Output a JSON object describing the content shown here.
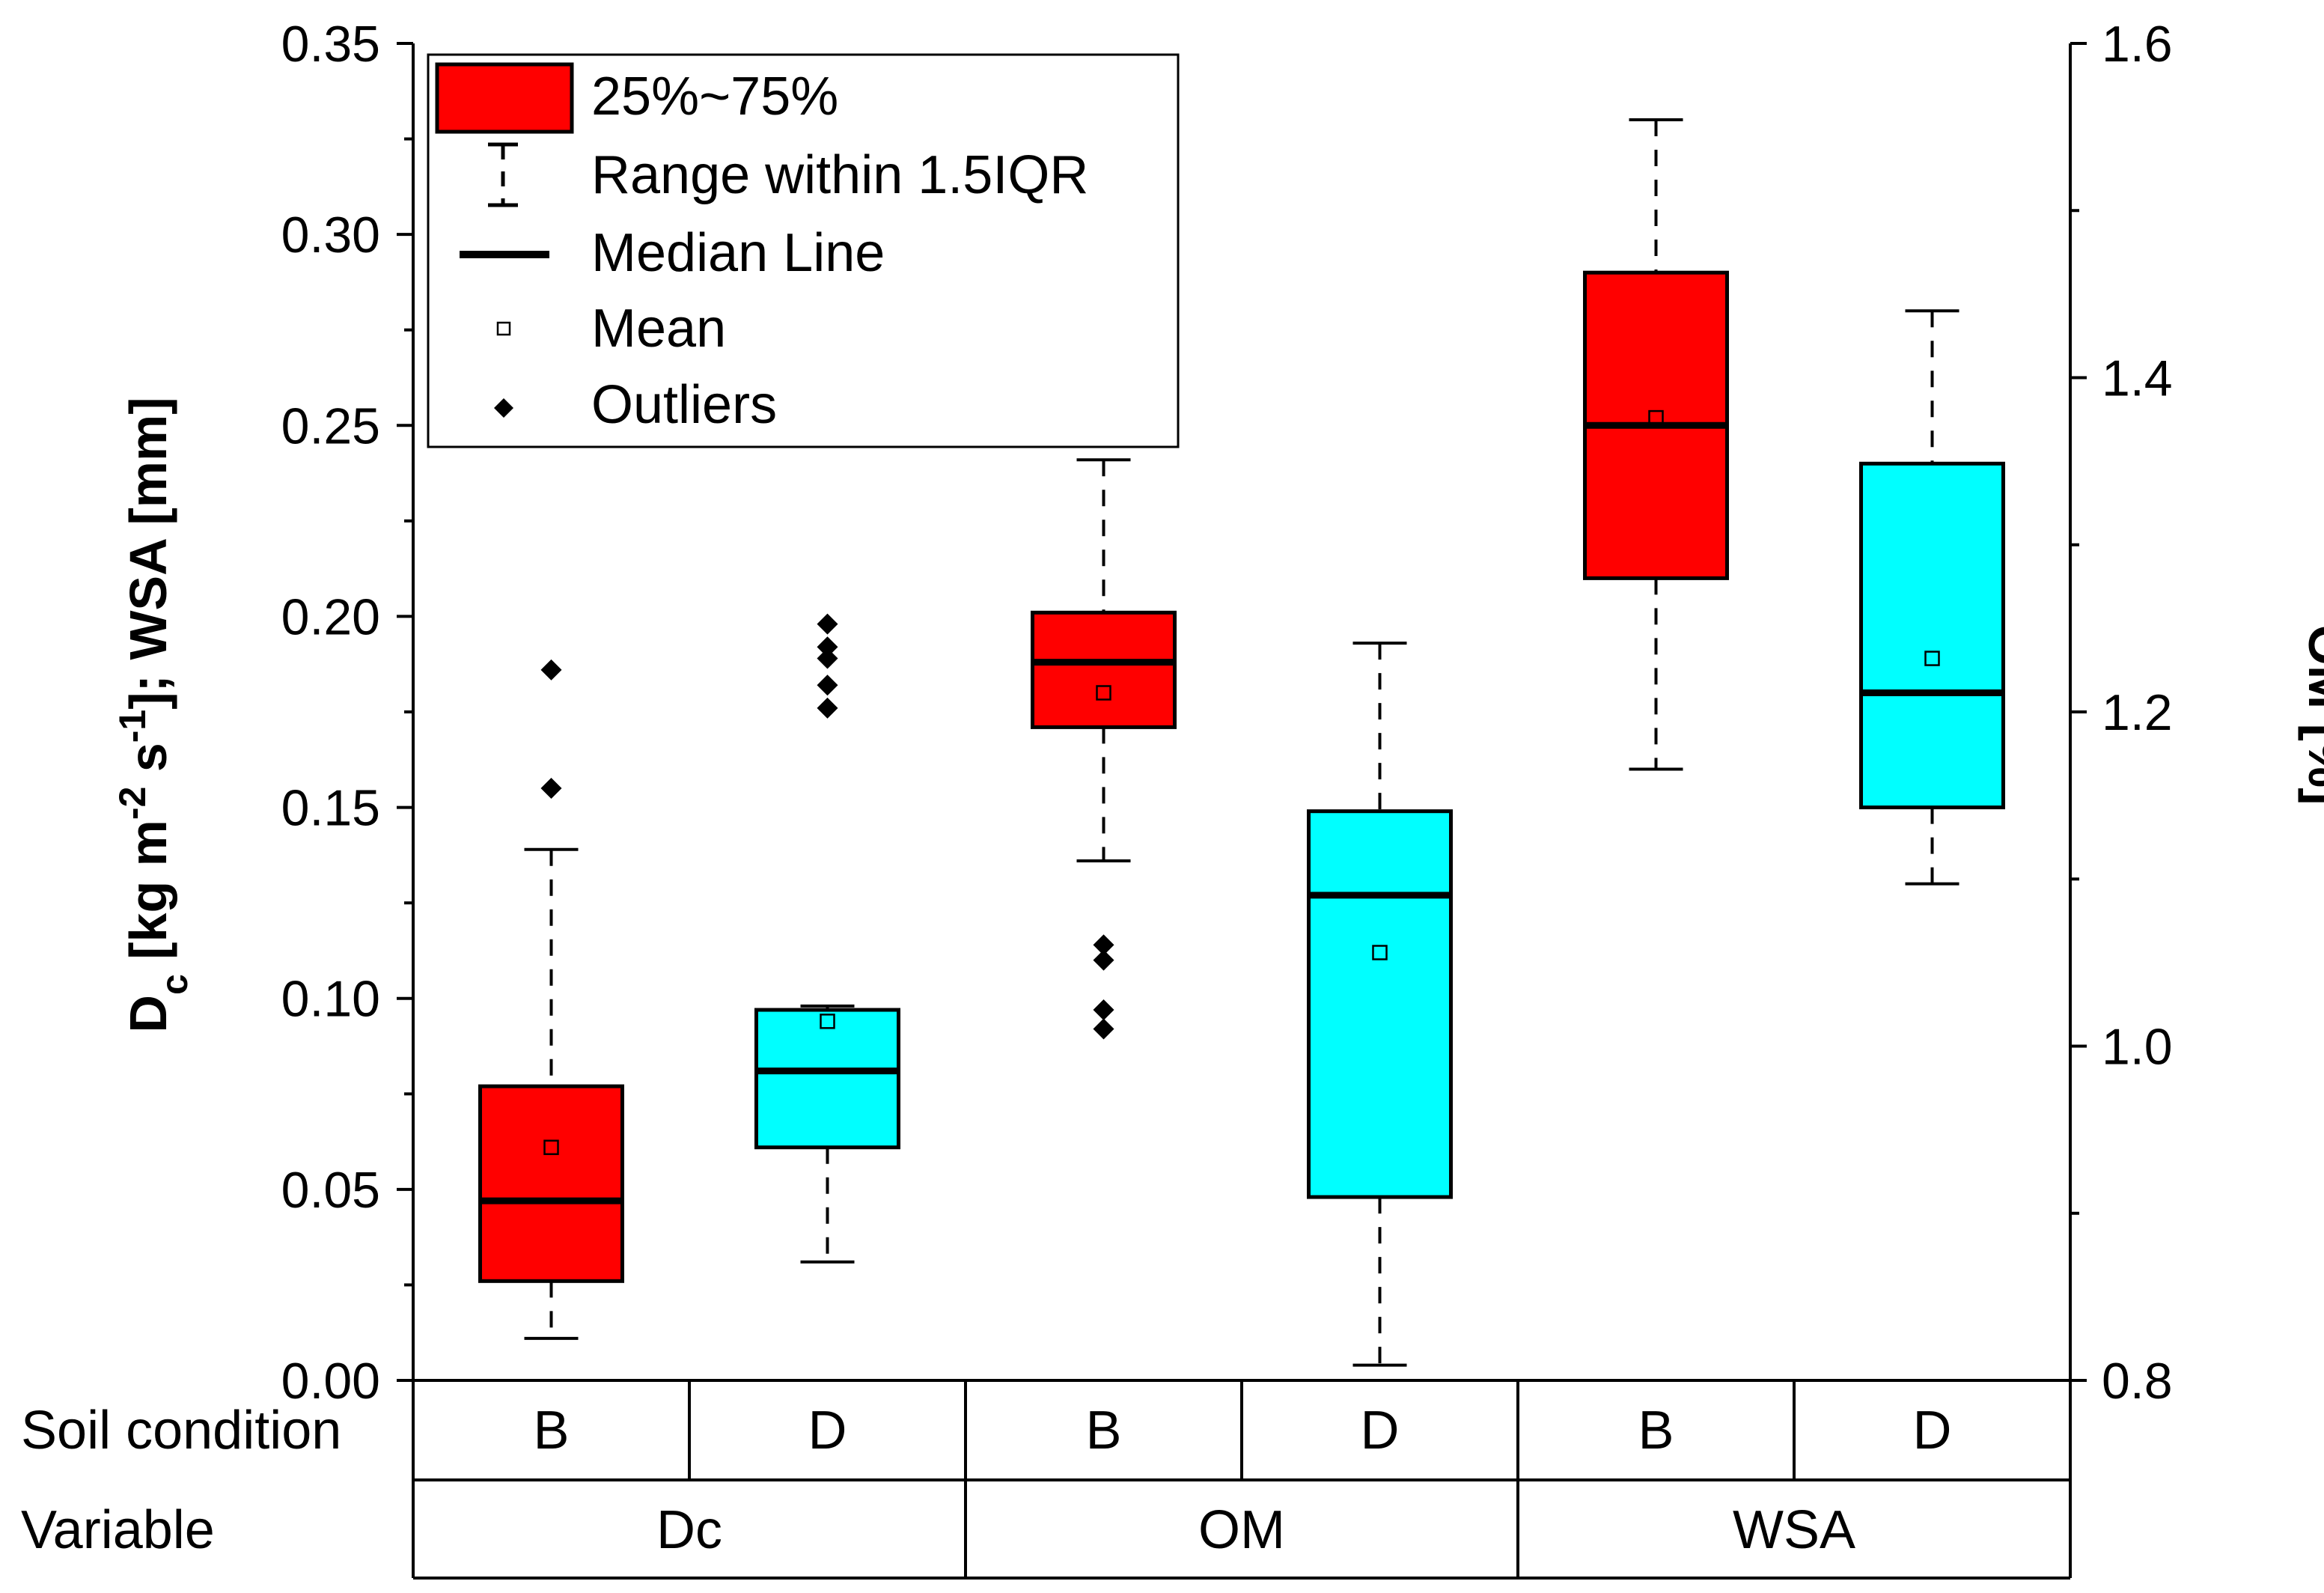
{
  "chart_data": {
    "type": "boxplot",
    "left_axis": {
      "title_parts": [
        "D",
        "c",
        " [kg m",
        "-2",
        " s",
        "-1",
        "]; WSA [mm]"
      ],
      "ylim": [
        0,
        0.35
      ],
      "ticks": [
        "0.00",
        "0.05",
        "0.10",
        "0.15",
        "0.20",
        "0.25",
        "0.30",
        "0.35"
      ]
    },
    "right_axis": {
      "title": "OM [%]",
      "ylim": [
        0.8,
        1.6
      ],
      "ticks": [
        "0.8",
        "1.0",
        "1.2",
        "1.4",
        "1.6"
      ]
    },
    "colors": {
      "B": "#ff0000",
      "D": "#00ffff"
    },
    "legend": {
      "box": "25%~75%",
      "range": "Range within 1.5IQR",
      "median": "Median Line",
      "mean": "Mean",
      "outliers": "Outliers"
    },
    "row_labels": {
      "soil": "Soil condition",
      "variable": "Variable"
    },
    "groups": [
      {
        "variable": "Dc",
        "boxes": [
          {
            "condition": "B",
            "q1": 0.026,
            "q3": 0.077,
            "median": 0.047,
            "mean": 0.061,
            "whisker_low": 0.011,
            "whisker_high": 0.139,
            "outliers": [
              0.155,
              0.186
            ]
          },
          {
            "condition": "D",
            "q1": 0.061,
            "q3": 0.097,
            "median": 0.081,
            "mean": 0.094,
            "whisker_low": 0.031,
            "whisker_high": 0.098,
            "outliers": [
              0.176,
              0.182,
              0.189,
              0.192,
              0.198
            ]
          }
        ]
      },
      {
        "variable": "OM",
        "boxes": [
          {
            "condition": "B",
            "q1": 0.171,
            "q3": 0.201,
            "median": 0.188,
            "mean": 0.18,
            "whisker_low": 0.136,
            "whisker_high": 0.241,
            "outliers": [
              0.092,
              0.097,
              0.11,
              0.114
            ]
          },
          {
            "condition": "D",
            "q1": 0.048,
            "q3": 0.149,
            "median": 0.127,
            "mean": 0.112,
            "whisker_low": 0.004,
            "whisker_high": 0.193,
            "outliers": []
          }
        ]
      },
      {
        "variable": "WSA",
        "boxes": [
          {
            "condition": "B",
            "q1": 0.21,
            "q3": 0.29,
            "median": 0.25,
            "mean": 0.252,
            "whisker_low": 0.16,
            "whisker_high": 0.33,
            "outliers": []
          },
          {
            "condition": "D",
            "q1": 0.15,
            "q3": 0.24,
            "median": 0.18,
            "mean": 0.189,
            "whisker_low": 0.13,
            "whisker_high": 0.28,
            "outliers": []
          }
        ]
      }
    ]
  }
}
